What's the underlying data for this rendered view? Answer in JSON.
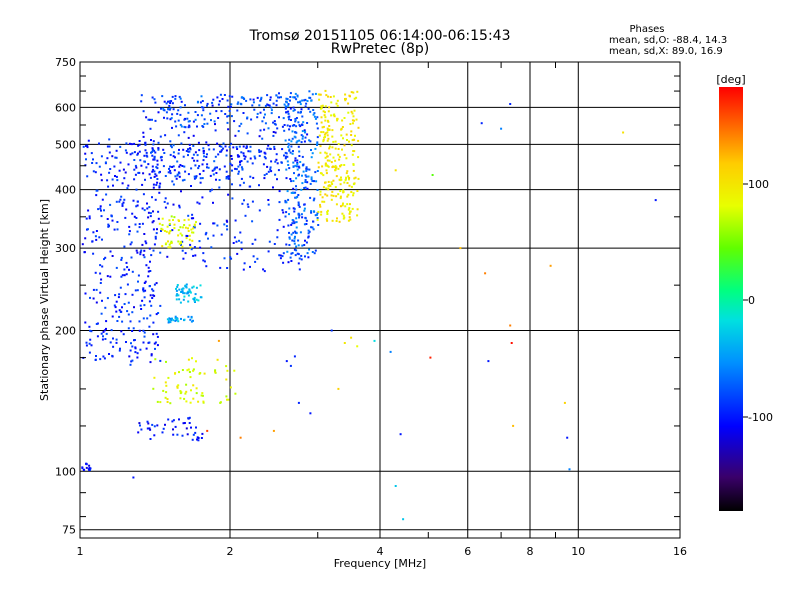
{
  "chart_data": {
    "type": "scatter",
    "title": "Tromsø 20151105 06:14:00-06:15:43",
    "subtitle": "RwPretec (8p)",
    "xlabel": "Frequency [MHz]",
    "ylabel": "Stationary phase Virtual Height [km]",
    "x_scale": "log",
    "y_scale": "log",
    "xlim": [
      1,
      16
    ],
    "ylim": [
      72,
      750
    ],
    "x_ticks": [
      "1",
      "2",
      "4",
      "6",
      "8",
      "10",
      "16"
    ],
    "y_ticks": [
      "75",
      "100",
      "200",
      "300",
      "400",
      "500",
      "600",
      "750"
    ],
    "stats": {
      "heading": "Phases",
      "line_o": "mean, sd,O: -88.4, 14.3",
      "line_x": "mean, sd,X:  89.0, 16.9"
    },
    "colorbar": {
      "label": "[deg]",
      "ticks": [
        "100",
        "0",
        "-100"
      ],
      "range": [
        -180,
        180
      ],
      "palette": "rainbow"
    },
    "traces": [
      {
        "f0": 1.0,
        "f1": 1.06,
        "h0": 100,
        "h1": 104,
        "phase": -100,
        "n": 14,
        "spread": 2
      },
      {
        "f0": 1.02,
        "f1": 1.45,
        "h0": 170,
        "h1": 520,
        "phase": -95,
        "n": 380,
        "spread": 26
      },
      {
        "f0": 1.3,
        "f1": 2.9,
        "h0": 268,
        "h1": 640,
        "phase": -95,
        "n": 360,
        "spread": 12
      },
      {
        "f0": 1.35,
        "f1": 2.55,
        "h0": 420,
        "h1": 500,
        "phase": -90,
        "n": 170,
        "spread": 14
      },
      {
        "f0": 1.45,
        "f1": 2.7,
        "h0": 540,
        "h1": 640,
        "phase": -80,
        "n": 140,
        "spread": 16
      },
      {
        "f0": 2.6,
        "f1": 3.0,
        "h0": 290,
        "h1": 650,
        "phase": -70,
        "n": 220,
        "spread": 10
      },
      {
        "f0": 3.0,
        "f1": 3.6,
        "h0": 340,
        "h1": 650,
        "phase": 95,
        "n": 260,
        "spread": 10
      },
      {
        "f0": 1.45,
        "f1": 1.7,
        "h0": 300,
        "h1": 350,
        "phase": 80,
        "n": 60,
        "spread": 8
      },
      {
        "f0": 1.55,
        "f1": 1.75,
        "h0": 230,
        "h1": 250,
        "phase": -35,
        "n": 50,
        "spread": 6
      },
      {
        "f0": 1.5,
        "f1": 1.7,
        "h0": 208,
        "h1": 214,
        "phase": -45,
        "n": 25,
        "spread": 3
      },
      {
        "f0": 1.4,
        "f1": 2.05,
        "h0": 140,
        "h1": 175,
        "phase": 80,
        "n": 70,
        "spread": 8
      },
      {
        "f0": 1.3,
        "f1": 1.75,
        "h0": 116,
        "h1": 130,
        "phase": -100,
        "n": 45,
        "spread": 5
      }
    ],
    "isolated_points": [
      {
        "x": 1.28,
        "y": 97,
        "phase": -100
      },
      {
        "x": 4.4,
        "y": 120,
        "phase": -100
      },
      {
        "x": 4.3,
        "y": 93,
        "phase": -30
      },
      {
        "x": 4.45,
        "y": 79,
        "phase": -30
      },
      {
        "x": 4.3,
        "y": 440,
        "phase": 100
      },
      {
        "x": 5.1,
        "y": 430,
        "phase": 40
      },
      {
        "x": 5.05,
        "y": 175,
        "phase": 170
      },
      {
        "x": 5.8,
        "y": 300,
        "phase": 120
      },
      {
        "x": 6.4,
        "y": 555,
        "phase": -95
      },
      {
        "x": 6.5,
        "y": 265,
        "phase": 140
      },
      {
        "x": 6.6,
        "y": 172,
        "phase": -100
      },
      {
        "x": 7.0,
        "y": 540,
        "phase": -60
      },
      {
        "x": 7.3,
        "y": 610,
        "phase": -95
      },
      {
        "x": 7.3,
        "y": 205,
        "phase": 140
      },
      {
        "x": 7.35,
        "y": 188,
        "phase": 175
      },
      {
        "x": 7.4,
        "y": 125,
        "phase": 120
      },
      {
        "x": 8.8,
        "y": 275,
        "phase": 130
      },
      {
        "x": 9.4,
        "y": 140,
        "phase": 110
      },
      {
        "x": 9.5,
        "y": 118,
        "phase": -100
      },
      {
        "x": 9.6,
        "y": 101,
        "phase": -60
      },
      {
        "x": 12.3,
        "y": 530,
        "phase": 100
      },
      {
        "x": 14.3,
        "y": 380,
        "phase": -100
      },
      {
        "x": 3.4,
        "y": 188,
        "phase": 95
      },
      {
        "x": 3.5,
        "y": 193,
        "phase": 100
      },
      {
        "x": 3.6,
        "y": 185,
        "phase": 80
      },
      {
        "x": 3.3,
        "y": 150,
        "phase": 110
      },
      {
        "x": 2.75,
        "y": 140,
        "phase": -95
      },
      {
        "x": 2.9,
        "y": 133,
        "phase": -100
      },
      {
        "x": 2.45,
        "y": 122,
        "phase": 130
      },
      {
        "x": 2.1,
        "y": 118,
        "phase": 140
      },
      {
        "x": 1.8,
        "y": 122,
        "phase": 160
      },
      {
        "x": 3.9,
        "y": 190,
        "phase": -20
      },
      {
        "x": 4.2,
        "y": 180,
        "phase": -60
      },
      {
        "x": 3.2,
        "y": 200,
        "phase": -90
      },
      {
        "x": 1.9,
        "y": 190,
        "phase": 130
      },
      {
        "x": 2.6,
        "y": 172,
        "phase": -100
      },
      {
        "x": 2.65,
        "y": 168,
        "phase": -90
      },
      {
        "x": 2.7,
        "y": 176,
        "phase": -95
      }
    ]
  }
}
